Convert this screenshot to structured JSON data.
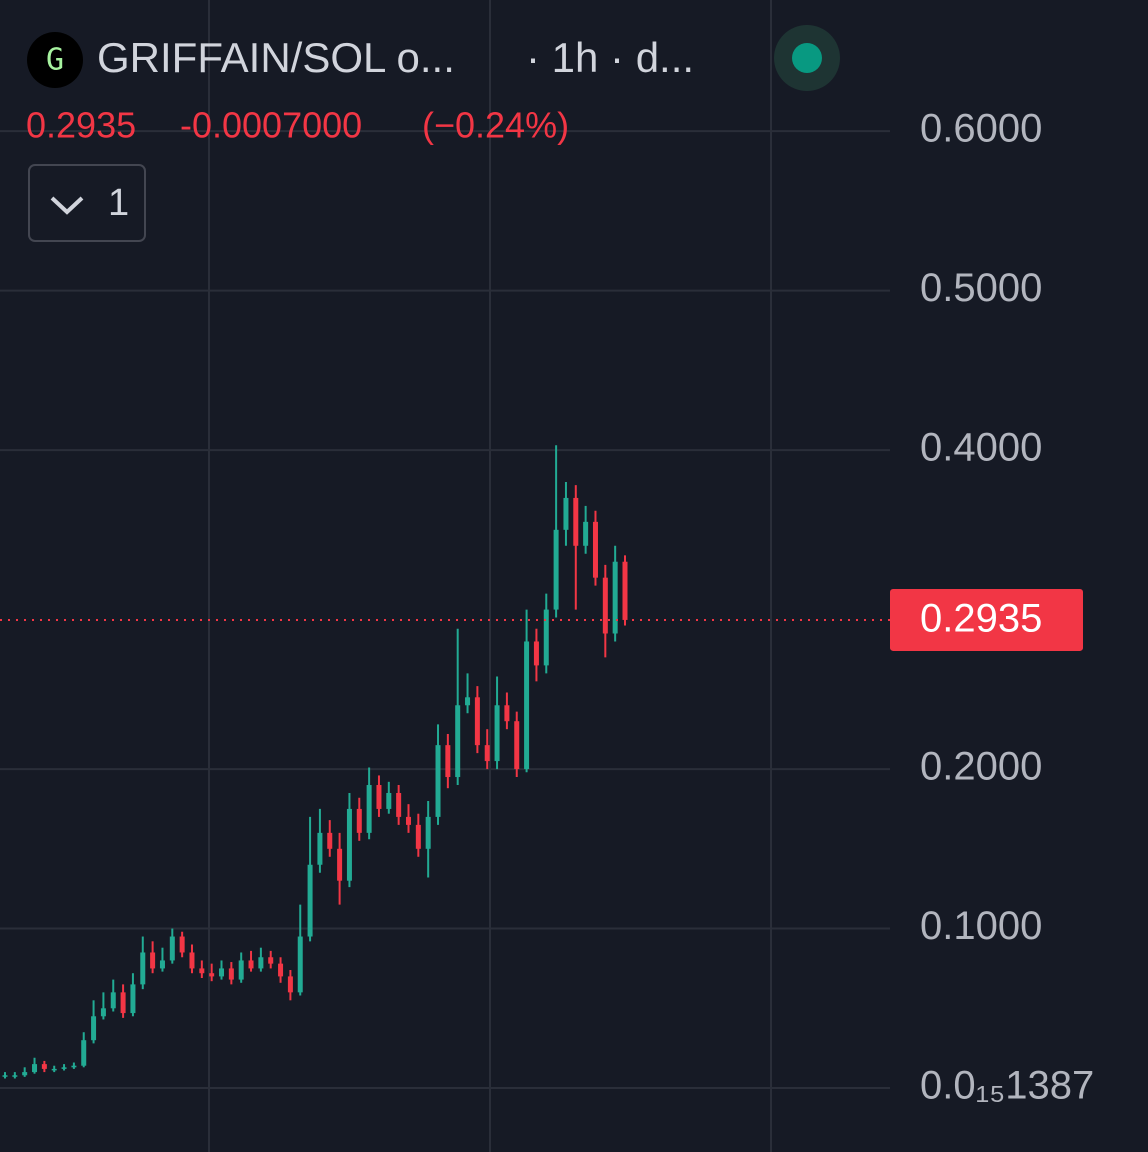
{
  "header": {
    "logo": "G",
    "title": "GRIFFAIN/SOL o...",
    "interval": "· 1h · d...",
    "price": "0.2935",
    "change": "-0.0007000",
    "change_percent": "(−0.24%)",
    "indicator_count": "1"
  },
  "chart_data": {
    "type": "candlestick",
    "up_color": "#22ab94",
    "down_color": "#f23645",
    "open": [
      0.008,
      0.008,
      0.008,
      0.01,
      0.015,
      0.012,
      0.012,
      0.013,
      0.014,
      0.03,
      0.045,
      0.05,
      0.06,
      0.047,
      0.065,
      0.085,
      0.075,
      0.08,
      0.095,
      0.085,
      0.075,
      0.072,
      0.07,
      0.075,
      0.068,
      0.08,
      0.075,
      0.082,
      0.078,
      0.07,
      0.06,
      0.095,
      0.14,
      0.16,
      0.15,
      0.13,
      0.175,
      0.16,
      0.19,
      0.175,
      0.185,
      0.17,
      0.165,
      0.15,
      0.17,
      0.215,
      0.195,
      0.24,
      0.245,
      0.215,
      0.205,
      0.24,
      0.23,
      0.2,
      0.28,
      0.265,
      0.3,
      0.35,
      0.37,
      0.34,
      0.355,
      0.32,
      0.285,
      0.33
    ],
    "high": [
      0.01,
      0.01,
      0.013,
      0.019,
      0.017,
      0.014,
      0.015,
      0.016,
      0.035,
      0.055,
      0.06,
      0.068,
      0.065,
      0.072,
      0.095,
      0.092,
      0.088,
      0.1,
      0.098,
      0.09,
      0.08,
      0.078,
      0.08,
      0.079,
      0.085,
      0.086,
      0.088,
      0.086,
      0.082,
      0.074,
      0.115,
      0.17,
      0.175,
      0.168,
      0.16,
      0.185,
      0.182,
      0.201,
      0.196,
      0.192,
      0.19,
      0.178,
      0.172,
      0.18,
      0.228,
      0.222,
      0.288,
      0.26,
      0.252,
      0.225,
      0.258,
      0.248,
      0.236,
      0.3,
      0.288,
      0.31,
      0.403,
      0.38,
      0.378,
      0.365,
      0.362,
      0.328,
      0.34,
      0.334
    ],
    "low": [
      0.006,
      0.006,
      0.007,
      0.009,
      0.01,
      0.01,
      0.011,
      0.012,
      0.013,
      0.028,
      0.043,
      0.048,
      0.044,
      0.045,
      0.062,
      0.072,
      0.073,
      0.078,
      0.082,
      0.072,
      0.069,
      0.067,
      0.068,
      0.065,
      0.066,
      0.073,
      0.073,
      0.075,
      0.066,
      0.055,
      0.058,
      0.092,
      0.135,
      0.145,
      0.115,
      0.126,
      0.155,
      0.156,
      0.17,
      0.172,
      0.165,
      0.16,
      0.145,
      0.132,
      0.165,
      0.188,
      0.19,
      0.235,
      0.21,
      0.2,
      0.2,
      0.225,
      0.195,
      0.198,
      0.255,
      0.26,
      0.295,
      0.34,
      0.3,
      0.335,
      0.315,
      0.27,
      0.28,
      0.29
    ],
    "close": [
      0.008,
      0.008,
      0.01,
      0.015,
      0.012,
      0.012,
      0.013,
      0.014,
      0.03,
      0.045,
      0.05,
      0.06,
      0.047,
      0.065,
      0.085,
      0.075,
      0.08,
      0.095,
      0.085,
      0.075,
      0.072,
      0.07,
      0.075,
      0.068,
      0.08,
      0.075,
      0.082,
      0.078,
      0.07,
      0.06,
      0.095,
      0.14,
      0.16,
      0.15,
      0.13,
      0.175,
      0.16,
      0.19,
      0.175,
      0.185,
      0.17,
      0.165,
      0.15,
      0.17,
      0.215,
      0.195,
      0.24,
      0.245,
      0.215,
      0.205,
      0.24,
      0.23,
      0.2,
      0.28,
      0.265,
      0.3,
      0.35,
      0.37,
      0.34,
      0.355,
      0.32,
      0.285,
      0.33,
      0.2935
    ],
    "last_price": 0.2935,
    "ylim": [
      -0.0401,
      0.6822
    ],
    "yticks": [
      {
        "value": 1.387e-16,
        "label": "0.0₁₅1387"
      },
      {
        "value": 0.1,
        "label": "0.1000"
      },
      {
        "value": 0.2,
        "label": "0.2000"
      },
      {
        "value": 0.4,
        "label": "0.4000"
      },
      {
        "value": 0.5,
        "label": "0.5000"
      },
      {
        "value": 0.6,
        "label": "0.6000"
      }
    ],
    "grid": true
  }
}
